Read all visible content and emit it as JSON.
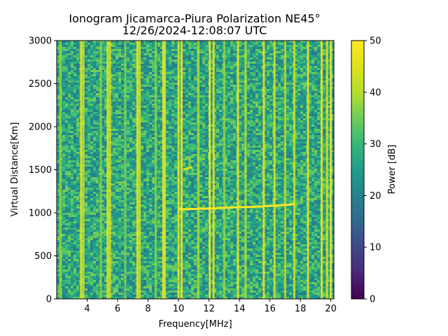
{
  "chart_data": {
    "type": "heatmap",
    "title": "Ionogram Jicamarca-Piura Polarization NE45°",
    "subtitle": "12/26/2024-12:08:07 UTC",
    "xlabel": "Frequency[MHz]",
    "ylabel": "Virtual Distance[Km]",
    "xlim": [
      2.0,
      20.2
    ],
    "ylim": [
      0,
      3000
    ],
    "x_ticks": [
      4,
      6,
      8,
      10,
      12,
      14,
      16,
      18,
      20
    ],
    "y_ticks": [
      0,
      500,
      1000,
      1500,
      2000,
      2500,
      3000
    ],
    "colorbar": {
      "label": "Power [dB]",
      "range": [
        0,
        50
      ],
      "ticks": [
        0,
        10,
        20,
        30,
        40,
        50
      ],
      "colormap": "viridis"
    },
    "background_level_db": 27,
    "noise_amplitude_db": 9,
    "interference_channels_mhz": [
      {
        "f": 2.25,
        "db": 38
      },
      {
        "f": 3.6,
        "db": 48
      },
      {
        "f": 3.75,
        "db": 44
      },
      {
        "f": 4.9,
        "db": 37
      },
      {
        "f": 5.35,
        "db": 48
      },
      {
        "f": 5.5,
        "db": 44
      },
      {
        "f": 6.5,
        "db": 36
      },
      {
        "f": 7.3,
        "db": 49
      },
      {
        "f": 7.45,
        "db": 44
      },
      {
        "f": 8.5,
        "db": 37
      },
      {
        "f": 9.0,
        "db": 50
      },
      {
        "f": 9.1,
        "db": 46
      },
      {
        "f": 10.0,
        "db": 47
      },
      {
        "f": 10.2,
        "db": 49
      },
      {
        "f": 11.3,
        "db": 40
      },
      {
        "f": 12.05,
        "db": 50
      },
      {
        "f": 12.3,
        "db": 48
      },
      {
        "f": 13.0,
        "db": 38
      },
      {
        "f": 13.9,
        "db": 48
      },
      {
        "f": 14.4,
        "db": 41
      },
      {
        "f": 15.6,
        "db": 49
      },
      {
        "f": 16.3,
        "db": 46
      },
      {
        "f": 17.0,
        "db": 41
      },
      {
        "f": 17.6,
        "db": 45
      },
      {
        "f": 18.5,
        "db": 48
      },
      {
        "f": 19.4,
        "db": 49
      },
      {
        "f": 19.75,
        "db": 46
      },
      {
        "f": 20.0,
        "db": 50
      }
    ],
    "ionospheric_trace": {
      "frequency_mhz": [
        10.0,
        11.0,
        12.0,
        13.0,
        14.0,
        15.0,
        16.0,
        17.0,
        17.6
      ],
      "virtual_distance_km": [
        1040,
        1045,
        1050,
        1058,
        1065,
        1070,
        1080,
        1090,
        1100
      ],
      "power_db": 50
    },
    "secondary_trace": {
      "frequency_mhz": [
        10.3,
        10.9
      ],
      "virtual_distance_km": [
        1500,
        1530
      ],
      "power_db": 45
    }
  }
}
